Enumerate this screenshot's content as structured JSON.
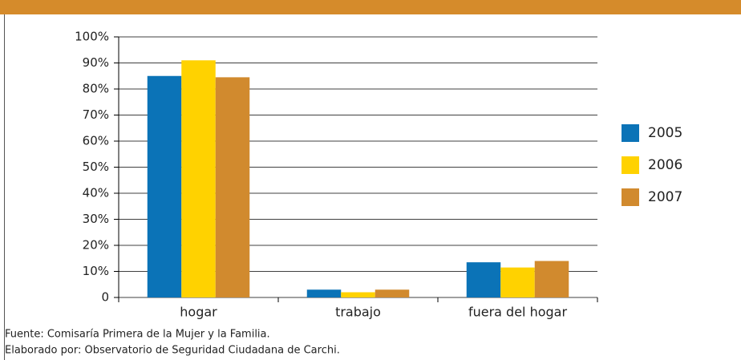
{
  "chart_data": {
    "type": "bar",
    "categories": [
      "hogar",
      "trabajo",
      "fuera del hogar"
    ],
    "series": [
      {
        "name": "2005",
        "color": "#0b73b7",
        "values": [
          85,
          3,
          13.5
        ]
      },
      {
        "name": "2006",
        "color": "#ffd200",
        "values": [
          91,
          2,
          11.5
        ]
      },
      {
        "name": "2007",
        "color": "#d18a2e",
        "values": [
          84.5,
          3,
          14
        ]
      }
    ],
    "ylim": [
      0,
      100
    ],
    "yticks": [
      0,
      {
        "value": 10,
        "label": "10%"
      },
      {
        "value": 20,
        "label": "20%"
      },
      {
        "value": 30,
        "label": "30%"
      },
      {
        "value": 40,
        "label": "40%"
      },
      {
        "value": 50,
        "label": "50%"
      },
      {
        "value": 60,
        "label": "60%"
      },
      {
        "value": 70,
        "label": "70%"
      },
      {
        "value": 80,
        "label": "80%"
      },
      {
        "value": 90,
        "label": "90%"
      },
      {
        "value": 100,
        "label": "100%"
      }
    ],
    "grid": true,
    "legend": "right",
    "notes": [
      "Fuente: Comisaría Primera de la Mujer y la Familia.",
      "Elaborado por: Observatorio de Seguridad Ciudadana de Carchi."
    ]
  }
}
